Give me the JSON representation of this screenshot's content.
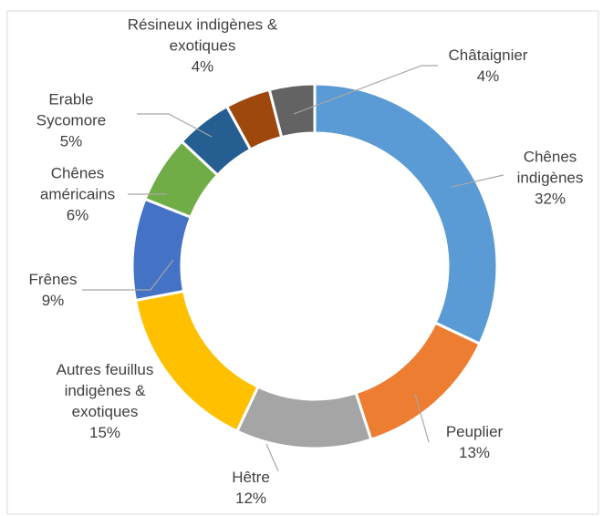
{
  "chart_data": {
    "type": "donut",
    "categories": [
      "Chênes indigènes",
      "Peuplier",
      "Hêtre",
      "Autres feuillus indigènes & exotiques",
      "Frênes",
      "Chênes américains",
      "Erable Sycomore",
      "Résineux indigènes & exotiques",
      "Châtaignier"
    ],
    "values": [
      32,
      13,
      12,
      15,
      9,
      6,
      5,
      4,
      4
    ],
    "value_labels": [
      "32%",
      "13%",
      "12%",
      "15%",
      "9%",
      "6%",
      "5%",
      "4%",
      "4%"
    ],
    "colors": [
      "#5b9bd5",
      "#ed7d31",
      "#a5a5a5",
      "#ffc000",
      "#4472c4",
      "#70ad47",
      "#255e91",
      "#9e480e",
      "#636363"
    ]
  }
}
